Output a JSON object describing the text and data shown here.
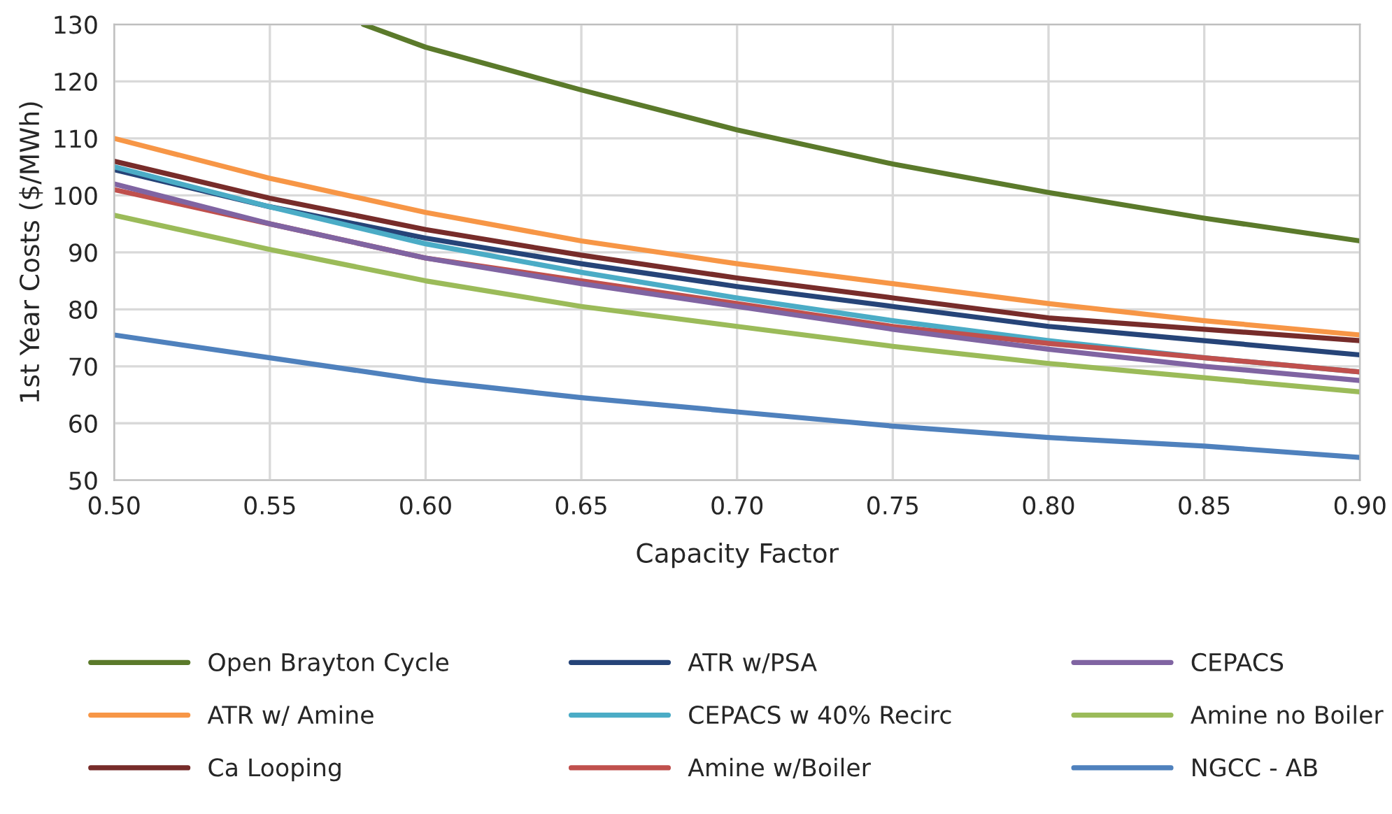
{
  "chart_data": {
    "type": "line",
    "xlabel": "Capacity Factor",
    "ylabel": "1st Year Costs ($/MWh)",
    "x": [
      0.5,
      0.55,
      0.6,
      0.65,
      0.7,
      0.75,
      0.8,
      0.85,
      0.9
    ],
    "xlim": [
      0.5,
      0.9
    ],
    "xticks": [
      {
        "value": 0.5,
        "label": "0.50"
      },
      {
        "value": 0.55,
        "label": "0.55"
      },
      {
        "value": 0.6,
        "label": "0.60"
      },
      {
        "value": 0.65,
        "label": "0.65"
      },
      {
        "value": 0.7,
        "label": "0.70"
      },
      {
        "value": 0.75,
        "label": "0.75"
      },
      {
        "value": 0.8,
        "label": "0.80"
      },
      {
        "value": 0.85,
        "label": "0.85"
      },
      {
        "value": 0.9,
        "label": "0.90"
      }
    ],
    "ylim": [
      50,
      130
    ],
    "yticks": [
      50,
      60,
      70,
      80,
      90,
      100,
      110,
      120,
      130
    ],
    "grid": true,
    "legend": "bottom",
    "line_style": "solid",
    "marker": "none",
    "series": [
      {
        "name": "Open Brayton Cycle",
        "color": "#5b7a2b",
        "x": [
          0.58,
          0.6,
          0.65,
          0.7,
          0.75,
          0.8,
          0.85,
          0.9
        ],
        "values": [
          130,
          126,
          118.5,
          111.5,
          105.5,
          100.5,
          96,
          92
        ]
      },
      {
        "name": "ATR w/ Amine",
        "color": "#f79646",
        "values": [
          110,
          103,
          97,
          92,
          88,
          84.5,
          81,
          78,
          75.5
        ]
      },
      {
        "name": "Ca Looping",
        "color": "#772c2a",
        "values": [
          106,
          99.5,
          94,
          89.5,
          85.5,
          82,
          78.5,
          76.5,
          74.5
        ]
      },
      {
        "name": "ATR w/PSA",
        "color": "#264478",
        "values": [
          104.5,
          98,
          92.5,
          88,
          84,
          80.5,
          77,
          74.5,
          72
        ]
      },
      {
        "name": "CEPACS w 40% Recirc",
        "color": "#4bacc6",
        "values": [
          105,
          98,
          91.5,
          86.5,
          82,
          78,
          74.5,
          71.5,
          69
        ]
      },
      {
        "name": "Amine w/Boiler",
        "color": "#c0504d",
        "values": [
          101,
          95,
          89,
          85,
          81,
          77,
          74,
          71.5,
          69
        ]
      },
      {
        "name": "CEPACS",
        "color": "#8064a2",
        "values": [
          102,
          95,
          89,
          84.5,
          80.5,
          76.5,
          73,
          70,
          67.5
        ]
      },
      {
        "name": "Amine no Boiler",
        "color": "#9bbb59",
        "values": [
          96.5,
          90.5,
          85,
          80.5,
          77,
          73.5,
          70.5,
          68,
          65.5
        ]
      },
      {
        "name": "NGCC - AB",
        "color": "#4f81bd",
        "values": [
          75.5,
          71.5,
          67.5,
          64.5,
          62,
          59.5,
          57.5,
          56,
          54
        ]
      }
    ]
  }
}
